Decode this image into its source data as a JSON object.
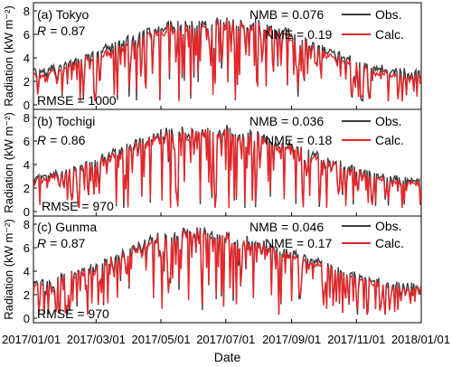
{
  "chart_data": {
    "type": "line",
    "xlabel": "Date",
    "ylabel": "Radiation (kW m⁻²)",
    "x_ticks": [
      "2017/01/01",
      "2017/03/01",
      "2017/05/01",
      "2017/07/01",
      "2017/09/01",
      "2017/11/01",
      "2018/01/01"
    ],
    "xlim": [
      "2017-01-01",
      "2018-01-01"
    ],
    "ylim": [
      0,
      8
    ],
    "y_ticks": [
      0,
      2,
      4,
      6,
      8
    ],
    "colors": {
      "obs": "#3d3d3d",
      "calc": "#e8262a"
    },
    "panels": [
      {
        "label": "(a) Tokyo",
        "r_label": "R",
        "r_value": "= 0.87",
        "rmse": "RMSE = 1000",
        "nmb": "NMB = 0.076",
        "nme": "NME = 0.19",
        "series": [
          {
            "name": "Obs.",
            "x": [
              "2017-01-01",
              "2017-01-16",
              "2017-02-01",
              "2017-02-15",
              "2017-03-01",
              "2017-03-16",
              "2017-04-01",
              "2017-04-15",
              "2017-05-01",
              "2017-05-16",
              "2017-06-01",
              "2017-06-15",
              "2017-07-01",
              "2017-07-16",
              "2017-08-01",
              "2017-08-16",
              "2017-09-01",
              "2017-09-15",
              "2017-10-01",
              "2017-10-16",
              "2017-11-01",
              "2017-11-15",
              "2017-12-01",
              "2017-12-16",
              "2018-01-01"
            ],
            "y": [
              3.0,
              3.3,
              3.8,
              4.3,
              4.8,
              5.3,
              5.9,
              6.4,
              7.0,
              7.3,
              7.2,
              7.4,
              7.5,
              7.2,
              7.3,
              6.6,
              6.4,
              5.6,
              5.0,
              4.5,
              3.9,
              3.5,
              3.2,
              3.0,
              2.9
            ]
          },
          {
            "name": "Calc.",
            "x": [
              "2017-01-01",
              "2017-01-16",
              "2017-02-01",
              "2017-02-15",
              "2017-03-01",
              "2017-03-16",
              "2017-04-01",
              "2017-04-15",
              "2017-05-01",
              "2017-05-16",
              "2017-06-01",
              "2017-06-15",
              "2017-07-01",
              "2017-07-16",
              "2017-08-01",
              "2017-08-16",
              "2017-09-01",
              "2017-09-15",
              "2017-10-01",
              "2017-10-16",
              "2017-11-01",
              "2017-11-15",
              "2017-12-01",
              "2017-12-16",
              "2018-01-01"
            ],
            "y": [
              2.6,
              2.9,
              3.4,
              3.9,
              4.3,
              4.8,
              5.4,
              5.9,
              6.6,
              7.0,
              6.8,
              7.0,
              7.2,
              6.9,
              7.1,
              6.3,
              6.0,
              5.3,
              4.6,
              4.1,
              3.5,
              3.1,
              2.8,
              2.6,
              2.5
            ]
          }
        ]
      },
      {
        "label": "(b) Tochigi",
        "r_label": "R",
        "r_value": "= 0.86",
        "rmse": "RMSE = 970",
        "nmb": "NMB = 0.036",
        "nme": "NME = 0.18",
        "series": [
          {
            "name": "Obs.",
            "x": [
              "2017-01-01",
              "2017-01-16",
              "2017-02-01",
              "2017-02-15",
              "2017-03-01",
              "2017-03-16",
              "2017-04-01",
              "2017-04-15",
              "2017-05-01",
              "2017-05-16",
              "2017-06-01",
              "2017-06-15",
              "2017-07-01",
              "2017-07-16",
              "2017-08-01",
              "2017-08-16",
              "2017-09-01",
              "2017-09-15",
              "2017-10-01",
              "2017-10-16",
              "2017-11-01",
              "2017-11-15",
              "2017-12-01",
              "2017-12-16",
              "2018-01-01"
            ],
            "y": [
              3.0,
              3.3,
              3.7,
              4.2,
              4.7,
              5.2,
              5.8,
              6.3,
              6.9,
              7.3,
              7.0,
              7.1,
              7.4,
              6.8,
              6.9,
              6.2,
              5.9,
              5.4,
              4.8,
              4.3,
              3.8,
              3.4,
              3.1,
              2.9,
              2.8
            ]
          },
          {
            "name": "Calc.",
            "x": [
              "2017-01-01",
              "2017-01-16",
              "2017-02-01",
              "2017-02-15",
              "2017-03-01",
              "2017-03-16",
              "2017-04-01",
              "2017-04-15",
              "2017-05-01",
              "2017-05-16",
              "2017-06-01",
              "2017-06-15",
              "2017-07-01",
              "2017-07-16",
              "2017-08-01",
              "2017-08-16",
              "2017-09-01",
              "2017-09-15",
              "2017-10-01",
              "2017-10-16",
              "2017-11-01",
              "2017-11-15",
              "2017-12-01",
              "2017-12-16",
              "2018-01-01"
            ],
            "y": [
              2.7,
              3.0,
              3.4,
              3.9,
              4.4,
              4.9,
              5.5,
              6.0,
              6.7,
              7.0,
              6.8,
              6.9,
              7.1,
              6.5,
              6.6,
              5.9,
              5.6,
              5.1,
              4.5,
              4.0,
              3.5,
              3.1,
              2.8,
              2.6,
              2.5
            ]
          }
        ]
      },
      {
        "label": "(c) Gunma",
        "r_label": "R",
        "r_value": "= 0.87",
        "rmse": "RMSE = 970",
        "nmb": "NMB = 0.046",
        "nme": "NME = 0.17",
        "series": [
          {
            "name": "Obs.",
            "x": [
              "2017-01-01",
              "2017-01-16",
              "2017-02-01",
              "2017-02-15",
              "2017-03-01",
              "2017-03-16",
              "2017-04-01",
              "2017-04-15",
              "2017-05-01",
              "2017-05-16",
              "2017-06-01",
              "2017-06-15",
              "2017-07-01",
              "2017-07-16",
              "2017-08-01",
              "2017-08-16",
              "2017-09-01",
              "2017-09-15",
              "2017-10-01",
              "2017-10-16",
              "2017-11-01",
              "2017-11-15",
              "2017-12-01",
              "2017-12-16",
              "2018-01-01"
            ],
            "y": [
              3.1,
              3.4,
              3.9,
              4.4,
              4.9,
              5.5,
              6.1,
              6.7,
              7.3,
              7.6,
              7.9,
              7.7,
              7.5,
              7.0,
              6.8,
              6.3,
              6.0,
              5.5,
              4.9,
              4.4,
              3.9,
              3.5,
              3.2,
              3.0,
              2.9
            ]
          },
          {
            "name": "Calc.",
            "x": [
              "2017-01-01",
              "2017-01-16",
              "2017-02-01",
              "2017-02-15",
              "2017-03-01",
              "2017-03-16",
              "2017-04-01",
              "2017-04-15",
              "2017-05-01",
              "2017-05-16",
              "2017-06-01",
              "2017-06-15",
              "2017-07-01",
              "2017-07-16",
              "2017-08-01",
              "2017-08-16",
              "2017-09-01",
              "2017-09-15",
              "2017-10-01",
              "2017-10-16",
              "2017-11-01",
              "2017-11-15",
              "2017-12-01",
              "2017-12-16",
              "2018-01-01"
            ],
            "y": [
              2.8,
              3.1,
              3.6,
              4.1,
              4.6,
              5.2,
              5.8,
              6.4,
              7.0,
              7.3,
              7.6,
              7.4,
              7.2,
              6.8,
              6.6,
              6.0,
              5.7,
              5.2,
              4.6,
              4.1,
              3.6,
              3.2,
              2.9,
              2.7,
              2.6
            ]
          }
        ]
      }
    ]
  }
}
